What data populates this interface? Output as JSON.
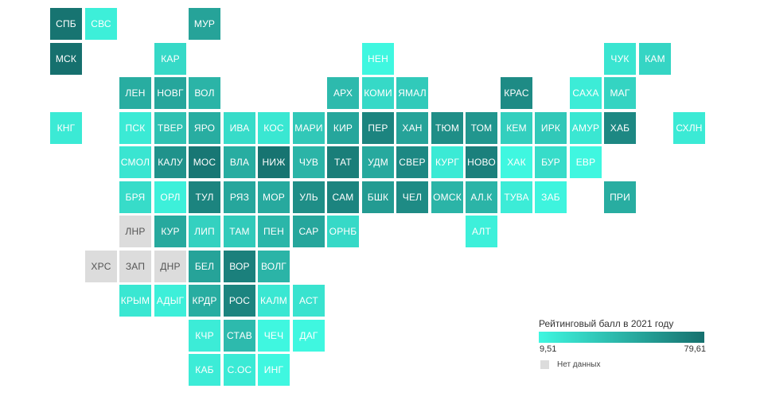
{
  "legend": {
    "title": "Рейтинговый балл в 2021 году",
    "min_label": "9,51",
    "max_label": "79,61",
    "min_value": 9.51,
    "max_value": 79.61,
    "color_low": "#3ff7e0",
    "color_high": "#16706e",
    "nodata_label": "Нет данных",
    "nodata_color": "#dcdcdc"
  },
  "regions": [
    {
      "label": "СПБ",
      "row": 0,
      "col": 0,
      "level": 0.97
    },
    {
      "label": "СВС",
      "row": 0,
      "col": 1,
      "level": 0.06
    },
    {
      "label": "МУР",
      "row": 0,
      "col": 4,
      "level": 0.62
    },
    {
      "label": "МСК",
      "row": 1,
      "col": 0,
      "level": 1.0
    },
    {
      "label": "КАР",
      "row": 1,
      "col": 3,
      "level": 0.22
    },
    {
      "label": "НЕН",
      "row": 1,
      "col": 9,
      "level": 0.0
    },
    {
      "label": "ЧУК",
      "row": 1,
      "col": 16,
      "level": 0.13
    },
    {
      "label": "КАМ",
      "row": 1,
      "col": 17,
      "level": 0.25
    },
    {
      "label": "ЛЕН",
      "row": 2,
      "col": 2,
      "level": 0.55
    },
    {
      "label": "НОВГ",
      "row": 2,
      "col": 3,
      "level": 0.6
    },
    {
      "label": "ВОЛ",
      "row": 2,
      "col": 4,
      "level": 0.5
    },
    {
      "label": "АРХ",
      "row": 2,
      "col": 8,
      "level": 0.45
    },
    {
      "label": "КОМИ",
      "row": 2,
      "col": 9,
      "level": 0.22
    },
    {
      "label": "ЯМАЛ",
      "row": 2,
      "col": 10,
      "level": 0.33
    },
    {
      "label": "КРАС",
      "row": 2,
      "col": 13,
      "level": 0.8
    },
    {
      "label": "САХА",
      "row": 2,
      "col": 15,
      "level": 0.08
    },
    {
      "label": "МАГ",
      "row": 2,
      "col": 16,
      "level": 0.26
    },
    {
      "label": "КНГ",
      "row": 3,
      "col": 0,
      "level": 0.1
    },
    {
      "label": "ПСК",
      "row": 3,
      "col": 2,
      "level": 0.1
    },
    {
      "label": "ТВЕР",
      "row": 3,
      "col": 3,
      "level": 0.4
    },
    {
      "label": "ЯРО",
      "row": 3,
      "col": 4,
      "level": 0.55
    },
    {
      "label": "ИВА",
      "row": 3,
      "col": 5,
      "level": 0.2
    },
    {
      "label": "КОС",
      "row": 3,
      "col": 6,
      "level": 0.12
    },
    {
      "label": "МАРИ",
      "row": 3,
      "col": 7,
      "level": 0.35
    },
    {
      "label": "КИР",
      "row": 3,
      "col": 8,
      "level": 0.6
    },
    {
      "label": "ПЕР",
      "row": 3,
      "col": 9,
      "level": 0.85
    },
    {
      "label": "ХАН",
      "row": 3,
      "col": 10,
      "level": 0.62
    },
    {
      "label": "ТЮМ",
      "row": 3,
      "col": 11,
      "level": 0.78
    },
    {
      "label": "ТОМ",
      "row": 3,
      "col": 12,
      "level": 0.72
    },
    {
      "label": "КЕМ",
      "row": 3,
      "col": 13,
      "level": 0.3
    },
    {
      "label": "ИРК",
      "row": 3,
      "col": 14,
      "level": 0.35
    },
    {
      "label": "АМУР",
      "row": 3,
      "col": 15,
      "level": 0.12
    },
    {
      "label": "ХАБ",
      "row": 3,
      "col": 16,
      "level": 0.82
    },
    {
      "label": "СХЛН",
      "row": 3,
      "col": 18,
      "level": 0.1
    },
    {
      "label": "СМОЛ",
      "row": 4,
      "col": 2,
      "level": 0.13
    },
    {
      "label": "КАЛУ",
      "row": 4,
      "col": 3,
      "level": 0.75
    },
    {
      "label": "МОС",
      "row": 4,
      "col": 4,
      "level": 0.95
    },
    {
      "label": "ВЛА",
      "row": 4,
      "col": 5,
      "level": 0.55
    },
    {
      "label": "НИЖ",
      "row": 4,
      "col": 6,
      "level": 0.97
    },
    {
      "label": "ЧУВ",
      "row": 4,
      "col": 7,
      "level": 0.5
    },
    {
      "label": "ТАТ",
      "row": 4,
      "col": 8,
      "level": 0.9
    },
    {
      "label": "УДМ",
      "row": 4,
      "col": 9,
      "level": 0.58
    },
    {
      "label": "СВЕР",
      "row": 4,
      "col": 10,
      "level": 0.82
    },
    {
      "label": "КУРГ",
      "row": 4,
      "col": 11,
      "level": 0.1
    },
    {
      "label": "НОВО",
      "row": 4,
      "col": 12,
      "level": 0.88
    },
    {
      "label": "ХАК",
      "row": 4,
      "col": 13,
      "level": 0.0
    },
    {
      "label": "БУР",
      "row": 4,
      "col": 14,
      "level": 0.2
    },
    {
      "label": "ЕВР",
      "row": 4,
      "col": 15,
      "level": 0.0
    },
    {
      "label": "БРЯ",
      "row": 5,
      "col": 2,
      "level": 0.2
    },
    {
      "label": "ОРЛ",
      "row": 5,
      "col": 3,
      "level": 0.05
    },
    {
      "label": "ТУЛ",
      "row": 5,
      "col": 4,
      "level": 0.85
    },
    {
      "label": "РЯЗ",
      "row": 5,
      "col": 5,
      "level": 0.6
    },
    {
      "label": "МОР",
      "row": 5,
      "col": 6,
      "level": 0.58
    },
    {
      "label": "УЛЬ",
      "row": 5,
      "col": 7,
      "level": 0.78
    },
    {
      "label": "САМ",
      "row": 5,
      "col": 8,
      "level": 0.85
    },
    {
      "label": "БШК",
      "row": 5,
      "col": 9,
      "level": 0.68
    },
    {
      "label": "ЧЕЛ",
      "row": 5,
      "col": 10,
      "level": 0.8
    },
    {
      "label": "ОМСК",
      "row": 5,
      "col": 11,
      "level": 0.5
    },
    {
      "label": "АЛ.К",
      "row": 5,
      "col": 12,
      "level": 0.5
    },
    {
      "label": "ТУВА",
      "row": 5,
      "col": 13,
      "level": 0.08
    },
    {
      "label": "ЗАБ",
      "row": 5,
      "col": 14,
      "level": 0.02
    },
    {
      "label": "ПРИ",
      "row": 5,
      "col": 16,
      "level": 0.55
    },
    {
      "label": "ЛНР",
      "row": 6,
      "col": 2,
      "level": null
    },
    {
      "label": "КУР",
      "row": 6,
      "col": 3,
      "level": 0.58
    },
    {
      "label": "ЛИП",
      "row": 6,
      "col": 4,
      "level": 0.28
    },
    {
      "label": "ТАМ",
      "row": 6,
      "col": 5,
      "level": 0.33
    },
    {
      "label": "ПЕН",
      "row": 6,
      "col": 6,
      "level": 0.48
    },
    {
      "label": "САР",
      "row": 6,
      "col": 7,
      "level": 0.6
    },
    {
      "label": "ОРНБ",
      "row": 6,
      "col": 8,
      "level": 0.22
    },
    {
      "label": "АЛТ",
      "row": 6,
      "col": 12,
      "level": 0.05
    },
    {
      "label": "ХРС",
      "row": 7,
      "col": 1,
      "level": null
    },
    {
      "label": "ЗАП",
      "row": 7,
      "col": 2,
      "level": null
    },
    {
      "label": "ДНР",
      "row": 7,
      "col": 3,
      "level": null
    },
    {
      "label": "БЕЛ",
      "row": 7,
      "col": 4,
      "level": 0.62
    },
    {
      "label": "ВОР",
      "row": 7,
      "col": 5,
      "level": 0.88
    },
    {
      "label": "ВОЛГ",
      "row": 7,
      "col": 6,
      "level": 0.5
    },
    {
      "label": "КРЫМ",
      "row": 8,
      "col": 2,
      "level": 0.12
    },
    {
      "label": "АДЫГ",
      "row": 8,
      "col": 3,
      "level": 0.06
    },
    {
      "label": "КРДР",
      "row": 8,
      "col": 4,
      "level": 0.55
    },
    {
      "label": "РОС",
      "row": 8,
      "col": 5,
      "level": 0.85
    },
    {
      "label": "КАЛМ",
      "row": 8,
      "col": 6,
      "level": 0.12
    },
    {
      "label": "АСТ",
      "row": 8,
      "col": 7,
      "level": 0.15
    },
    {
      "label": "КЧР",
      "row": 9,
      "col": 4,
      "level": 0.08
    },
    {
      "label": "СТАВ",
      "row": 9,
      "col": 5,
      "level": 0.45
    },
    {
      "label": "ЧЕЧ",
      "row": 9,
      "col": 6,
      "level": 0.0
    },
    {
      "label": "ДАГ",
      "row": 9,
      "col": 7,
      "level": 0.0
    },
    {
      "label": "КАБ",
      "row": 10,
      "col": 4,
      "level": 0.08
    },
    {
      "label": "С.ОС",
      "row": 10,
      "col": 5,
      "level": 0.1
    },
    {
      "label": "ИНГ",
      "row": 10,
      "col": 6,
      "level": 0.0
    }
  ]
}
